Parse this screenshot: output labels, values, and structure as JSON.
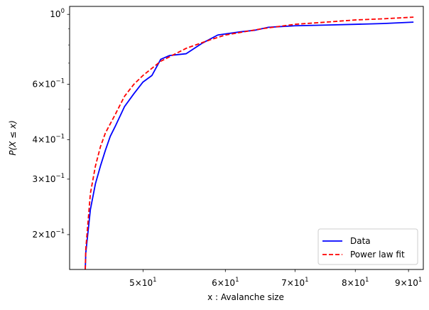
{
  "chart_data": {
    "type": "line",
    "xlabel": "x :  Avalanche size",
    "ylabel": "P(X ≤ x)",
    "xscale": "log",
    "yscale": "log",
    "xlim": [
      42.5,
      93
    ],
    "ylim": [
      0.155,
      1.06
    ],
    "x_ticks": [
      {
        "value": 50,
        "mant": "5",
        "exp": "1"
      },
      {
        "value": 60,
        "mant": "6",
        "exp": "1"
      },
      {
        "value": 70,
        "mant": "7",
        "exp": "1"
      },
      {
        "value": 80,
        "mant": "8",
        "exp": "1"
      },
      {
        "value": 90,
        "mant": "9",
        "exp": "1"
      }
    ],
    "y_ticks": [
      {
        "value": 0.2,
        "mant": "2",
        "exp": "−1"
      },
      {
        "value": 0.3,
        "mant": "3",
        "exp": "−1"
      },
      {
        "value": 0.4,
        "mant": "4",
        "exp": "−1"
      },
      {
        "value": 0.6,
        "mant": "6",
        "exp": "−1"
      },
      {
        "value": 1.0,
        "mant": "",
        "exp": "0"
      }
    ],
    "y_minor_ticks": [
      0.5,
      0.7,
      0.8,
      0.9
    ],
    "grid": false,
    "legend_position": "bottom-right",
    "series": [
      {
        "name": "Data",
        "color": "#0000ff",
        "style": "solid",
        "points": [
          [
            44,
            0.155
          ],
          [
            44.05,
            0.175
          ],
          [
            44.5,
            0.24
          ],
          [
            45,
            0.29
          ],
          [
            45.5,
            0.33
          ],
          [
            46,
            0.37
          ],
          [
            46.5,
            0.41
          ],
          [
            47,
            0.44
          ],
          [
            48,
            0.51
          ],
          [
            49,
            0.56
          ],
          [
            50,
            0.61
          ],
          [
            51,
            0.64
          ],
          [
            52,
            0.72
          ],
          [
            53,
            0.74
          ],
          [
            55,
            0.75
          ],
          [
            57,
            0.81
          ],
          [
            59,
            0.86
          ],
          [
            62,
            0.88
          ],
          [
            64,
            0.89
          ],
          [
            66,
            0.91
          ],
          [
            70,
            0.92
          ],
          [
            75,
            0.925
          ],
          [
            80,
            0.93
          ],
          [
            85,
            0.935
          ],
          [
            91,
            0.945
          ]
        ]
      },
      {
        "name": "Power law fit",
        "color": "#ff0000",
        "style": "dashed",
        "points": [
          [
            44,
            0.155
          ],
          [
            44.05,
            0.18
          ],
          [
            44.5,
            0.27
          ],
          [
            45,
            0.33
          ],
          [
            45.5,
            0.38
          ],
          [
            46,
            0.42
          ],
          [
            47,
            0.48
          ],
          [
            48,
            0.55
          ],
          [
            49,
            0.6
          ],
          [
            50,
            0.64
          ],
          [
            52,
            0.71
          ],
          [
            55,
            0.78
          ],
          [
            58,
            0.83
          ],
          [
            60,
            0.86
          ],
          [
            65,
            0.9
          ],
          [
            70,
            0.93
          ],
          [
            75,
            0.945
          ],
          [
            80,
            0.96
          ],
          [
            85,
            0.968
          ],
          [
            91,
            0.98
          ]
        ]
      }
    ]
  }
}
